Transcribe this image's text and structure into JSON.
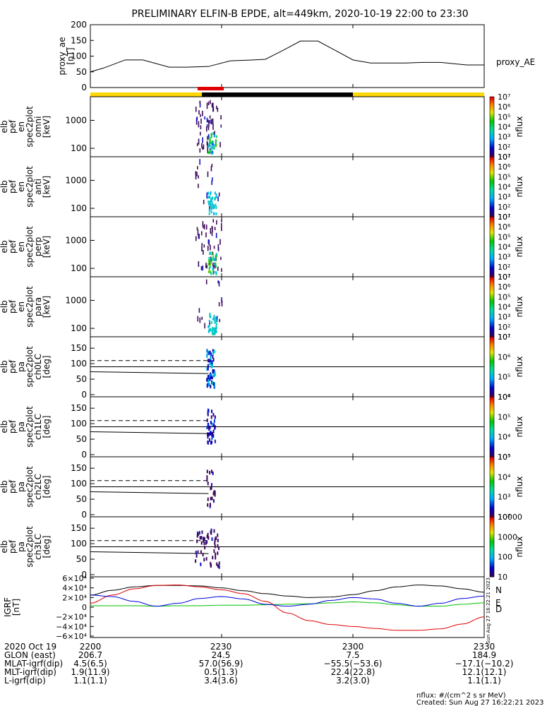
{
  "title": "PRELIMINARY ELFIN-B EPDE, alt=449km, 2020-10-19 22:00 to 23:30",
  "time_axis": {
    "ticks": [
      "2200",
      "2230",
      "2300",
      "2330"
    ],
    "range_minutes": [
      0,
      90
    ]
  },
  "ephemeris": {
    "rows": [
      {
        "label": "2020 Oct 19",
        "values": [
          "2200",
          "2230",
          "2300",
          "2330"
        ]
      },
      {
        "label": "GLON (east)",
        "values": [
          "206.7",
          "24.5",
          "7.5",
          "184.9"
        ]
      },
      {
        "label": "MLAT-igrf(dip)",
        "values": [
          "4.5(6.5)",
          "57.0(56.9)",
          "−55.5(−53.6)",
          "−17.1(−10.2)"
        ]
      },
      {
        "label": "MLT-igrf(dip)",
        "values": [
          "1.9(11.9)",
          "0.5(1.3)",
          "22.4(22.8)",
          "12.1(12.1)"
        ]
      },
      {
        "label": "L-igrf(dip)",
        "values": [
          "1.1(1.1)",
          "3.4(3.6)",
          "3.2(3.0)",
          "1.1(1.1)"
        ]
      }
    ]
  },
  "footer": {
    "units": "nflux: #/(cm^2 s sr MeV)",
    "created": "Created: Sun Aug 27 16:22:21 2023",
    "vertical_stamp": "Sun Aug 27 16:22:21 2023"
  },
  "chart_data": [
    {
      "type": "line",
      "panel": "proxy_ae",
      "ylabel": "proxy_ae [nT]",
      "legend": "proxy_AE",
      "ylim": [
        0,
        200
      ],
      "yticks": [
        "0",
        "50",
        "100",
        "150",
        "200"
      ],
      "x_minutes": [
        0,
        3,
        8,
        12,
        18,
        22,
        27,
        32,
        36,
        40,
        44,
        48,
        52,
        56,
        60,
        64,
        68,
        72,
        76,
        80,
        86,
        90
      ],
      "y": [
        50,
        62,
        88,
        88,
        65,
        65,
        67,
        85,
        87,
        90,
        118,
        148,
        148,
        118,
        88,
        78,
        78,
        78,
        80,
        80,
        72,
        72
      ]
    },
    {
      "type": "line",
      "panel": "science_zone_bar",
      "segments": [
        {
          "color": "#ffd700",
          "start_min": 0,
          "end_min": 25.5
        },
        {
          "color": "#000000",
          "start_min": 25.5,
          "end_min": 60
        },
        {
          "color": "#ffd700",
          "start_min": 60,
          "end_min": 90
        },
        {
          "color": "#e00000",
          "start_min": 24.5,
          "end_min": 30.5,
          "row": "upper"
        }
      ]
    },
    {
      "type": "heatmap",
      "panel": "en_spec_omni",
      "ylabel": [
        "elb",
        "pef",
        "en",
        "spec2plot",
        "omni",
        "[keV]"
      ],
      "scale": "log",
      "yticks": [
        "100",
        "1000"
      ],
      "colorbar": {
        "label": "nflux",
        "ticks": [
          "10¹",
          "10²",
          "10³",
          "10⁴",
          "10⁵",
          "10⁶",
          "10⁷"
        ]
      }
    },
    {
      "type": "heatmap",
      "panel": "en_spec_anti",
      "ylabel": [
        "elb",
        "pef",
        "en",
        "spec2plot",
        "anti",
        "[keV]"
      ],
      "scale": "log",
      "yticks": [
        "100",
        "1000"
      ],
      "colorbar": {
        "label": "nflux",
        "ticks": [
          "10¹",
          "10²",
          "10³",
          "10⁴",
          "10⁵",
          "10⁶",
          "10⁷"
        ]
      }
    },
    {
      "type": "heatmap",
      "panel": "en_spec_perp",
      "ylabel": [
        "elb",
        "pef",
        "en",
        "spec2plot",
        "perp",
        "[keV]"
      ],
      "scale": "log",
      "yticks": [
        "100",
        "1000"
      ],
      "colorbar": {
        "label": "nflux",
        "ticks": [
          "10¹",
          "10²",
          "10³",
          "10⁴",
          "10⁵",
          "10⁶",
          "10⁷"
        ]
      }
    },
    {
      "type": "heatmap",
      "panel": "en_spec_para",
      "ylabel": [
        "elb",
        "pef",
        "en",
        "spec2plot",
        "para",
        "[keV]"
      ],
      "scale": "log",
      "yticks": [
        "100",
        "1000"
      ],
      "colorbar": {
        "label": "nflux",
        "ticks": [
          "10¹",
          "10²",
          "10³",
          "10⁴",
          "10⁵",
          "10⁶",
          "10⁷"
        ]
      }
    },
    {
      "type": "heatmap",
      "panel": "pa_ch0LC",
      "ylabel": [
        "elb",
        "pef",
        "pa",
        "spec2plot",
        "ch0LC",
        "[deg]"
      ],
      "ylim": [
        0,
        180
      ],
      "yticks": [
        "0",
        "50",
        "100",
        "150"
      ],
      "colorbar": {
        "label": "nflux",
        "ticks": [
          "10⁴",
          "10⁵",
          "10⁶",
          "10⁷"
        ]
      }
    },
    {
      "type": "heatmap",
      "panel": "pa_ch1LC",
      "ylabel": [
        "elb",
        "pef",
        "pa",
        "spec2plot",
        "ch1LC",
        "[deg]"
      ],
      "ylim": [
        0,
        180
      ],
      "yticks": [
        "0",
        "50",
        "100",
        "150"
      ],
      "colorbar": {
        "label": "nflux",
        "ticks": [
          "10³",
          "10⁴",
          "10⁵",
          "10⁶"
        ]
      }
    },
    {
      "type": "heatmap",
      "panel": "pa_ch2LC",
      "ylabel": [
        "elb",
        "pef",
        "pa",
        "spec2plot",
        "ch2LC",
        "[deg]"
      ],
      "ylim": [
        0,
        180
      ],
      "yticks": [
        "0",
        "50",
        "100",
        "150"
      ],
      "colorbar": {
        "label": "nflux",
        "ticks": [
          "10²",
          "10³",
          "10⁴",
          "10⁵"
        ]
      }
    },
    {
      "type": "heatmap",
      "panel": "pa_ch3LC",
      "ylabel": [
        "elb",
        "pef",
        "pa",
        "spec2plot",
        "ch3LC",
        "[deg]"
      ],
      "ylim": [
        0,
        180
      ],
      "yticks": [
        "0",
        "50",
        "100",
        "150"
      ],
      "colorbar": {
        "label": "nflux",
        "ticks": [
          "10",
          "100",
          "1000",
          "10000"
        ]
      }
    },
    {
      "type": "line",
      "panel": "igrf",
      "ylabel": [
        "IGRF",
        "[nT]"
      ],
      "ylim": [
        -60000,
        60000
      ],
      "yticks": [
        "−6×10⁴",
        "−4×10⁴",
        "−2×10⁴",
        "0",
        "2×10⁴",
        "4×10⁴",
        "6×10⁴"
      ],
      "x_minutes": [
        0,
        5,
        10,
        15,
        20,
        25,
        30,
        35,
        40,
        45,
        50,
        55,
        60,
        65,
        70,
        75,
        80,
        85,
        90
      ],
      "series": [
        {
          "name": "N",
          "color": "#000000",
          "values": [
            25000,
            35000,
            42000,
            45000,
            45000,
            44000,
            40000,
            34000,
            28000,
            23000,
            20000,
            21000,
            26000,
            34000,
            42000,
            46000,
            44000,
            38000,
            31000
          ]
        },
        {
          "name": "E",
          "color": "#00c000",
          "values": [
            3000,
            3000,
            3000,
            2000,
            3000,
            3000,
            4000,
            4000,
            5000,
            6000,
            7000,
            9000,
            11000,
            9000,
            5000,
            2000,
            2000,
            6000,
            9000
          ]
        },
        {
          "name": "D",
          "color": "#e00000",
          "values": [
            8000,
            25000,
            38000,
            45000,
            46000,
            42000,
            36000,
            28000,
            12000,
            -12000,
            -28000,
            -36000,
            -40000,
            -44000,
            -48000,
            -48000,
            -45000,
            -35000,
            -20000
          ]
        },
        {
          "name": "",
          "color": "#0000e0",
          "values": [
            25000,
            22000,
            12000,
            2000,
            8000,
            18000,
            22000,
            17000,
            6000,
            2000,
            6000,
            14000,
            20000,
            17000,
            8000,
            2000,
            8000,
            18000,
            23000
          ]
        }
      ]
    }
  ]
}
